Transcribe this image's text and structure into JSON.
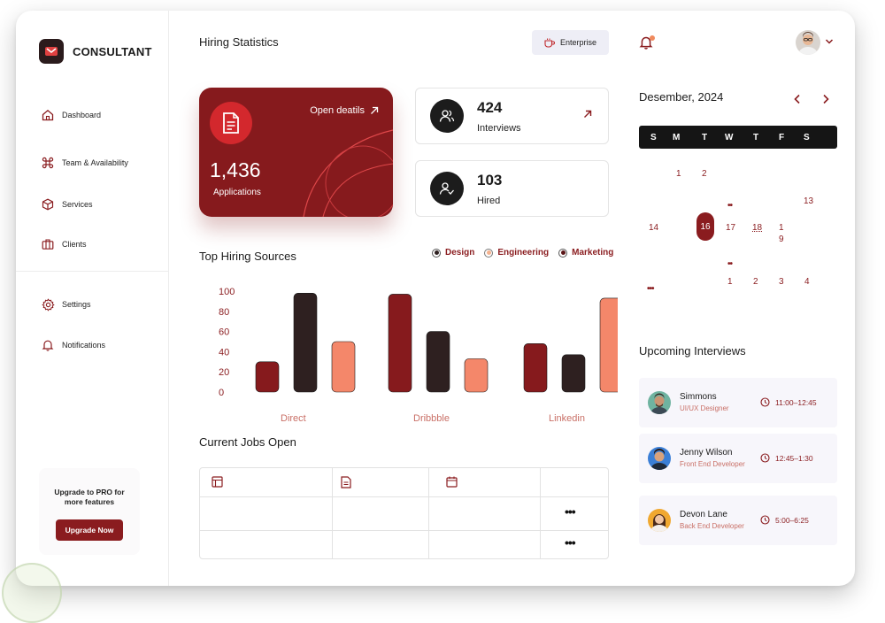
{
  "brand": {
    "name": "CONSULTANT"
  },
  "sidebar": {
    "items": [
      {
        "label": "Dashboard",
        "icon": "home-icon"
      },
      {
        "label": "Team & Availability",
        "icon": "command-icon"
      },
      {
        "label": "Services",
        "icon": "box-icon"
      },
      {
        "label": "Clients",
        "icon": "briefcase-icon"
      },
      {
        "label": "Settings",
        "icon": "gear-icon"
      },
      {
        "label": "Notifications",
        "icon": "bell-icon"
      }
    ],
    "upgrade": {
      "text": "Upgrade to PRO for more features",
      "button": "Upgrade Now"
    }
  },
  "header": {
    "title": "Hiring Statistics",
    "plan_label": "Enterprise"
  },
  "applications": {
    "value": "1,436",
    "label": "Applications",
    "link": "Open deatils"
  },
  "stats": [
    {
      "value": "424",
      "label": "Interviews"
    },
    {
      "value": "103",
      "label": "Hired"
    }
  ],
  "sources": {
    "title": "Top Hiring Sources"
  },
  "chart_data": {
    "type": "bar",
    "title": "Top Hiring Sources",
    "categories": [
      "Direct",
      "Dribbble",
      "Linkedin"
    ],
    "series": [
      {
        "name": "Design",
        "values": [
          30,
          97,
          48
        ]
      },
      {
        "name": "Engineering",
        "values": [
          98,
          60,
          37
        ]
      },
      {
        "name": "Marketing",
        "values": [
          50,
          33,
          93
        ]
      }
    ],
    "yticks": [
      0,
      20,
      40,
      60,
      80,
      100
    ],
    "ylim": [
      0,
      100
    ],
    "colors": [
      "#861a1d",
      "#2e2020",
      "#f4876a"
    ],
    "legend": "top-right",
    "grid": false
  },
  "jobs": {
    "title": "Current Jobs Open",
    "header_icons": [
      "layout-icon",
      "file-icon",
      "calendar-icon"
    ],
    "more": "•••"
  },
  "calendar": {
    "month": "Desember, 2024",
    "weekdays": [
      "S",
      "M",
      "T",
      "W",
      "T",
      "F",
      "S"
    ],
    "selected": "16",
    "more": "•••",
    "event_dots": "••",
    "days_row1": [
      "1",
      "2"
    ],
    "days_row2": [
      "13"
    ],
    "days_row3": [
      "14",
      "17",
      "18",
      "1",
      "9"
    ],
    "days_row5": [
      "1",
      "2",
      "3",
      "4"
    ]
  },
  "upcoming": {
    "title": "Upcoming Interviews",
    "items": [
      {
        "name": "Simmons",
        "role": "UI/UX Designer",
        "time": "11:00–12:45"
      },
      {
        "name": "Jenny Wilson",
        "role": "Front End Developer",
        "time": "12:45–1:30"
      },
      {
        "name": "Devon Lane",
        "role": "Back End Developer",
        "time": "5:00–6:25"
      }
    ]
  }
}
